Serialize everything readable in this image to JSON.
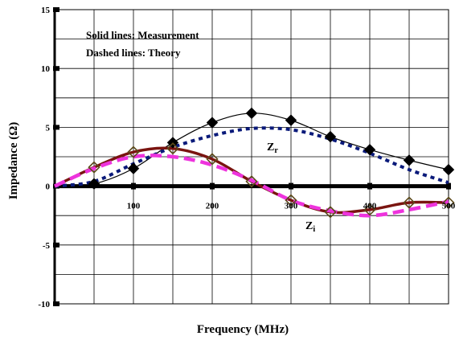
{
  "chart_data": {
    "type": "line",
    "xlabel": "Frequency (MHz)",
    "ylabel": "Impedance (Ω)",
    "xlim": [
      0,
      500
    ],
    "ylim": [
      -10,
      15
    ],
    "x_ticks": [
      "100",
      "200",
      "300",
      "400",
      "500"
    ],
    "y_ticks": [
      "15",
      "10",
      "5",
      "0",
      "-5",
      "-10"
    ],
    "grid": true,
    "annotations": {
      "solid_note": "Solid lines: Measurement",
      "dashed_note": "Dashed lines: Theory"
    },
    "curve_labels": {
      "zr": {
        "base": "Z",
        "sub": "r"
      },
      "zi": {
        "base": "Z",
        "sub": "i"
      }
    },
    "series": [
      {
        "style": "solid",
        "color": "#000000",
        "marker": "filled-diamond",
        "x": [
          0,
          50,
          100,
          150,
          200,
          250,
          300,
          350,
          400,
          450,
          500
        ],
        "y": [
          0,
          0.2,
          1.5,
          3.7,
          5.4,
          6.2,
          5.6,
          4.2,
          3.1,
          2.2,
          1.4
        ]
      },
      {
        "style": "dotted",
        "color": "#0a1a7a",
        "x": [
          0,
          50,
          100,
          150,
          200,
          250,
          300,
          350,
          400,
          450,
          500
        ],
        "y": [
          0,
          0.4,
          1.9,
          3.3,
          4.3,
          4.9,
          4.8,
          4.0,
          2.8,
          1.4,
          0.3
        ]
      },
      {
        "style": "solid",
        "color": "#7a1410",
        "marker": "open-diamond",
        "x": [
          0,
          50,
          100,
          150,
          200,
          250,
          300,
          350,
          400,
          450,
          500
        ],
        "y": [
          0,
          1.6,
          2.9,
          3.2,
          2.3,
          0.4,
          -1.2,
          -2.2,
          -2.0,
          -1.4,
          -1.4
        ]
      },
      {
        "style": "dashed",
        "color": "#ee33dd",
        "x": [
          0,
          50,
          100,
          150,
          200,
          250,
          300,
          350,
          400,
          450,
          500
        ],
        "y": [
          0,
          1.5,
          2.5,
          2.5,
          1.8,
          0.5,
          -1.2,
          -2.1,
          -2.5,
          -2.0,
          -1.3
        ]
      }
    ]
  }
}
